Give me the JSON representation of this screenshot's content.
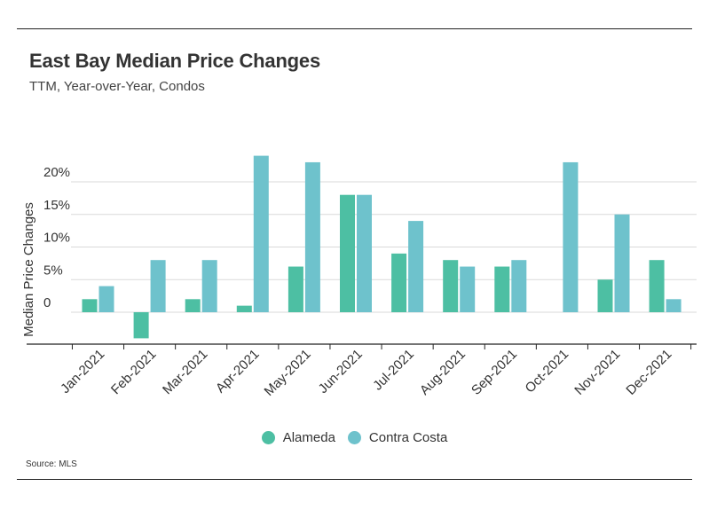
{
  "header": {
    "title": "East Bay Median Price Changes",
    "subtitle": "TTM, Year-over-Year, Condos"
  },
  "footer": {
    "source": "Source:  MLS"
  },
  "colors": {
    "alameda": "#4dbfa3",
    "contra_costa": "#6ec2cc",
    "grid": "#d9d9d9",
    "axis": "#222222"
  },
  "chart_data": {
    "type": "bar",
    "title": "East Bay Median Price Changes",
    "subtitle": "TTM, Year-over-Year, Condos",
    "xlabel": "",
    "ylabel": "Median Price Changes",
    "ylim": [
      -4,
      24
    ],
    "yticks": [
      0,
      5,
      10,
      15,
      20
    ],
    "ytick_labels": [
      "0",
      "5%",
      "10%",
      "15%",
      "20%"
    ],
    "grid": true,
    "legend_position": "bottom",
    "categories": [
      "Jan-2021",
      "Feb-2021",
      "Mar-2021",
      "Apr-2021",
      "May-2021",
      "Jun-2021",
      "Jul-2021",
      "Aug-2021",
      "Sep-2021",
      "Oct-2021",
      "Nov-2021",
      "Dec-2021"
    ],
    "series": [
      {
        "name": "Alameda",
        "color": "#4dbfa3",
        "values": [
          2,
          -4,
          2,
          1,
          7,
          18,
          9,
          8,
          7,
          0,
          5,
          8
        ]
      },
      {
        "name": "Contra Costa",
        "color": "#6ec2cc",
        "values": [
          4,
          8,
          8,
          24,
          23,
          18,
          14,
          7,
          8,
          23,
          15,
          2
        ]
      }
    ]
  }
}
